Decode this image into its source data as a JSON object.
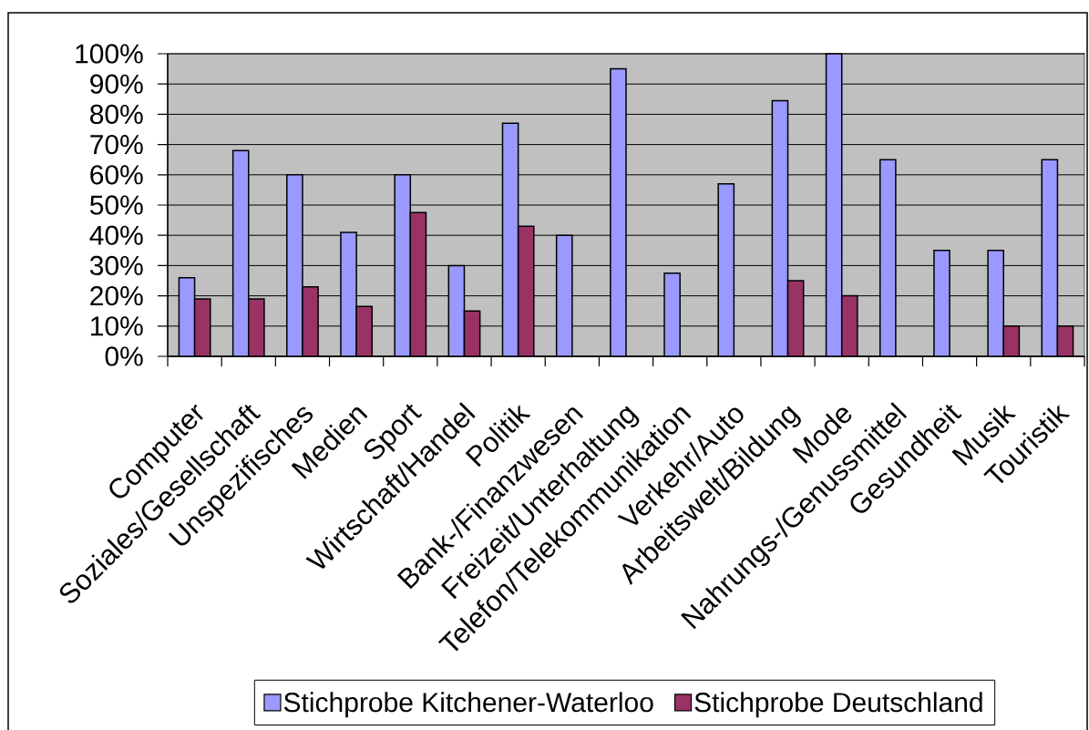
{
  "chart_data": {
    "type": "bar",
    "categories": [
      "Computer",
      "Soziales/Gesellschaft",
      "Unspezifisches",
      "Medien",
      "Sport",
      "Wirtschaft/Handel",
      "Politik",
      "Bank-/Finanzwesen",
      "Freizeit/Unterhaltung",
      "Telefon/Telekommunikation",
      "Verkehr/Auto",
      "Arbeitswelt/Bildung",
      "Mode",
      "Nahrungs-/Genussmittel",
      "Gesundheit",
      "Musik",
      "Touristik"
    ],
    "series": [
      {
        "name": "Stichprobe Kitchener-Waterloo",
        "color": "#9999ff",
        "values": [
          26,
          68,
          60,
          41,
          60,
          30,
          77,
          40,
          95,
          27.5,
          57,
          84.5,
          100,
          65,
          35,
          35,
          65
        ]
      },
      {
        "name": "Stichprobe Deutschland",
        "color": "#993366",
        "values": [
          19,
          19,
          23,
          16.5,
          47.5,
          15,
          43,
          null,
          null,
          null,
          null,
          25,
          20,
          null,
          null,
          10,
          10
        ]
      }
    ],
    "ylim": [
      0,
      100
    ],
    "yticks": [
      {
        "value": 0,
        "label": "0%"
      },
      {
        "value": 10,
        "label": "10%"
      },
      {
        "value": 20,
        "label": "20%"
      },
      {
        "value": 30,
        "label": "30%"
      },
      {
        "value": 40,
        "label": "40%"
      },
      {
        "value": 50,
        "label": "50%"
      },
      {
        "value": 60,
        "label": "60%"
      },
      {
        "value": 70,
        "label": "70%"
      },
      {
        "value": 80,
        "label": "80%"
      },
      {
        "value": 90,
        "label": "90%"
      },
      {
        "value": 100,
        "label": "100%"
      }
    ],
    "grid": "y",
    "legend": "bottom"
  }
}
